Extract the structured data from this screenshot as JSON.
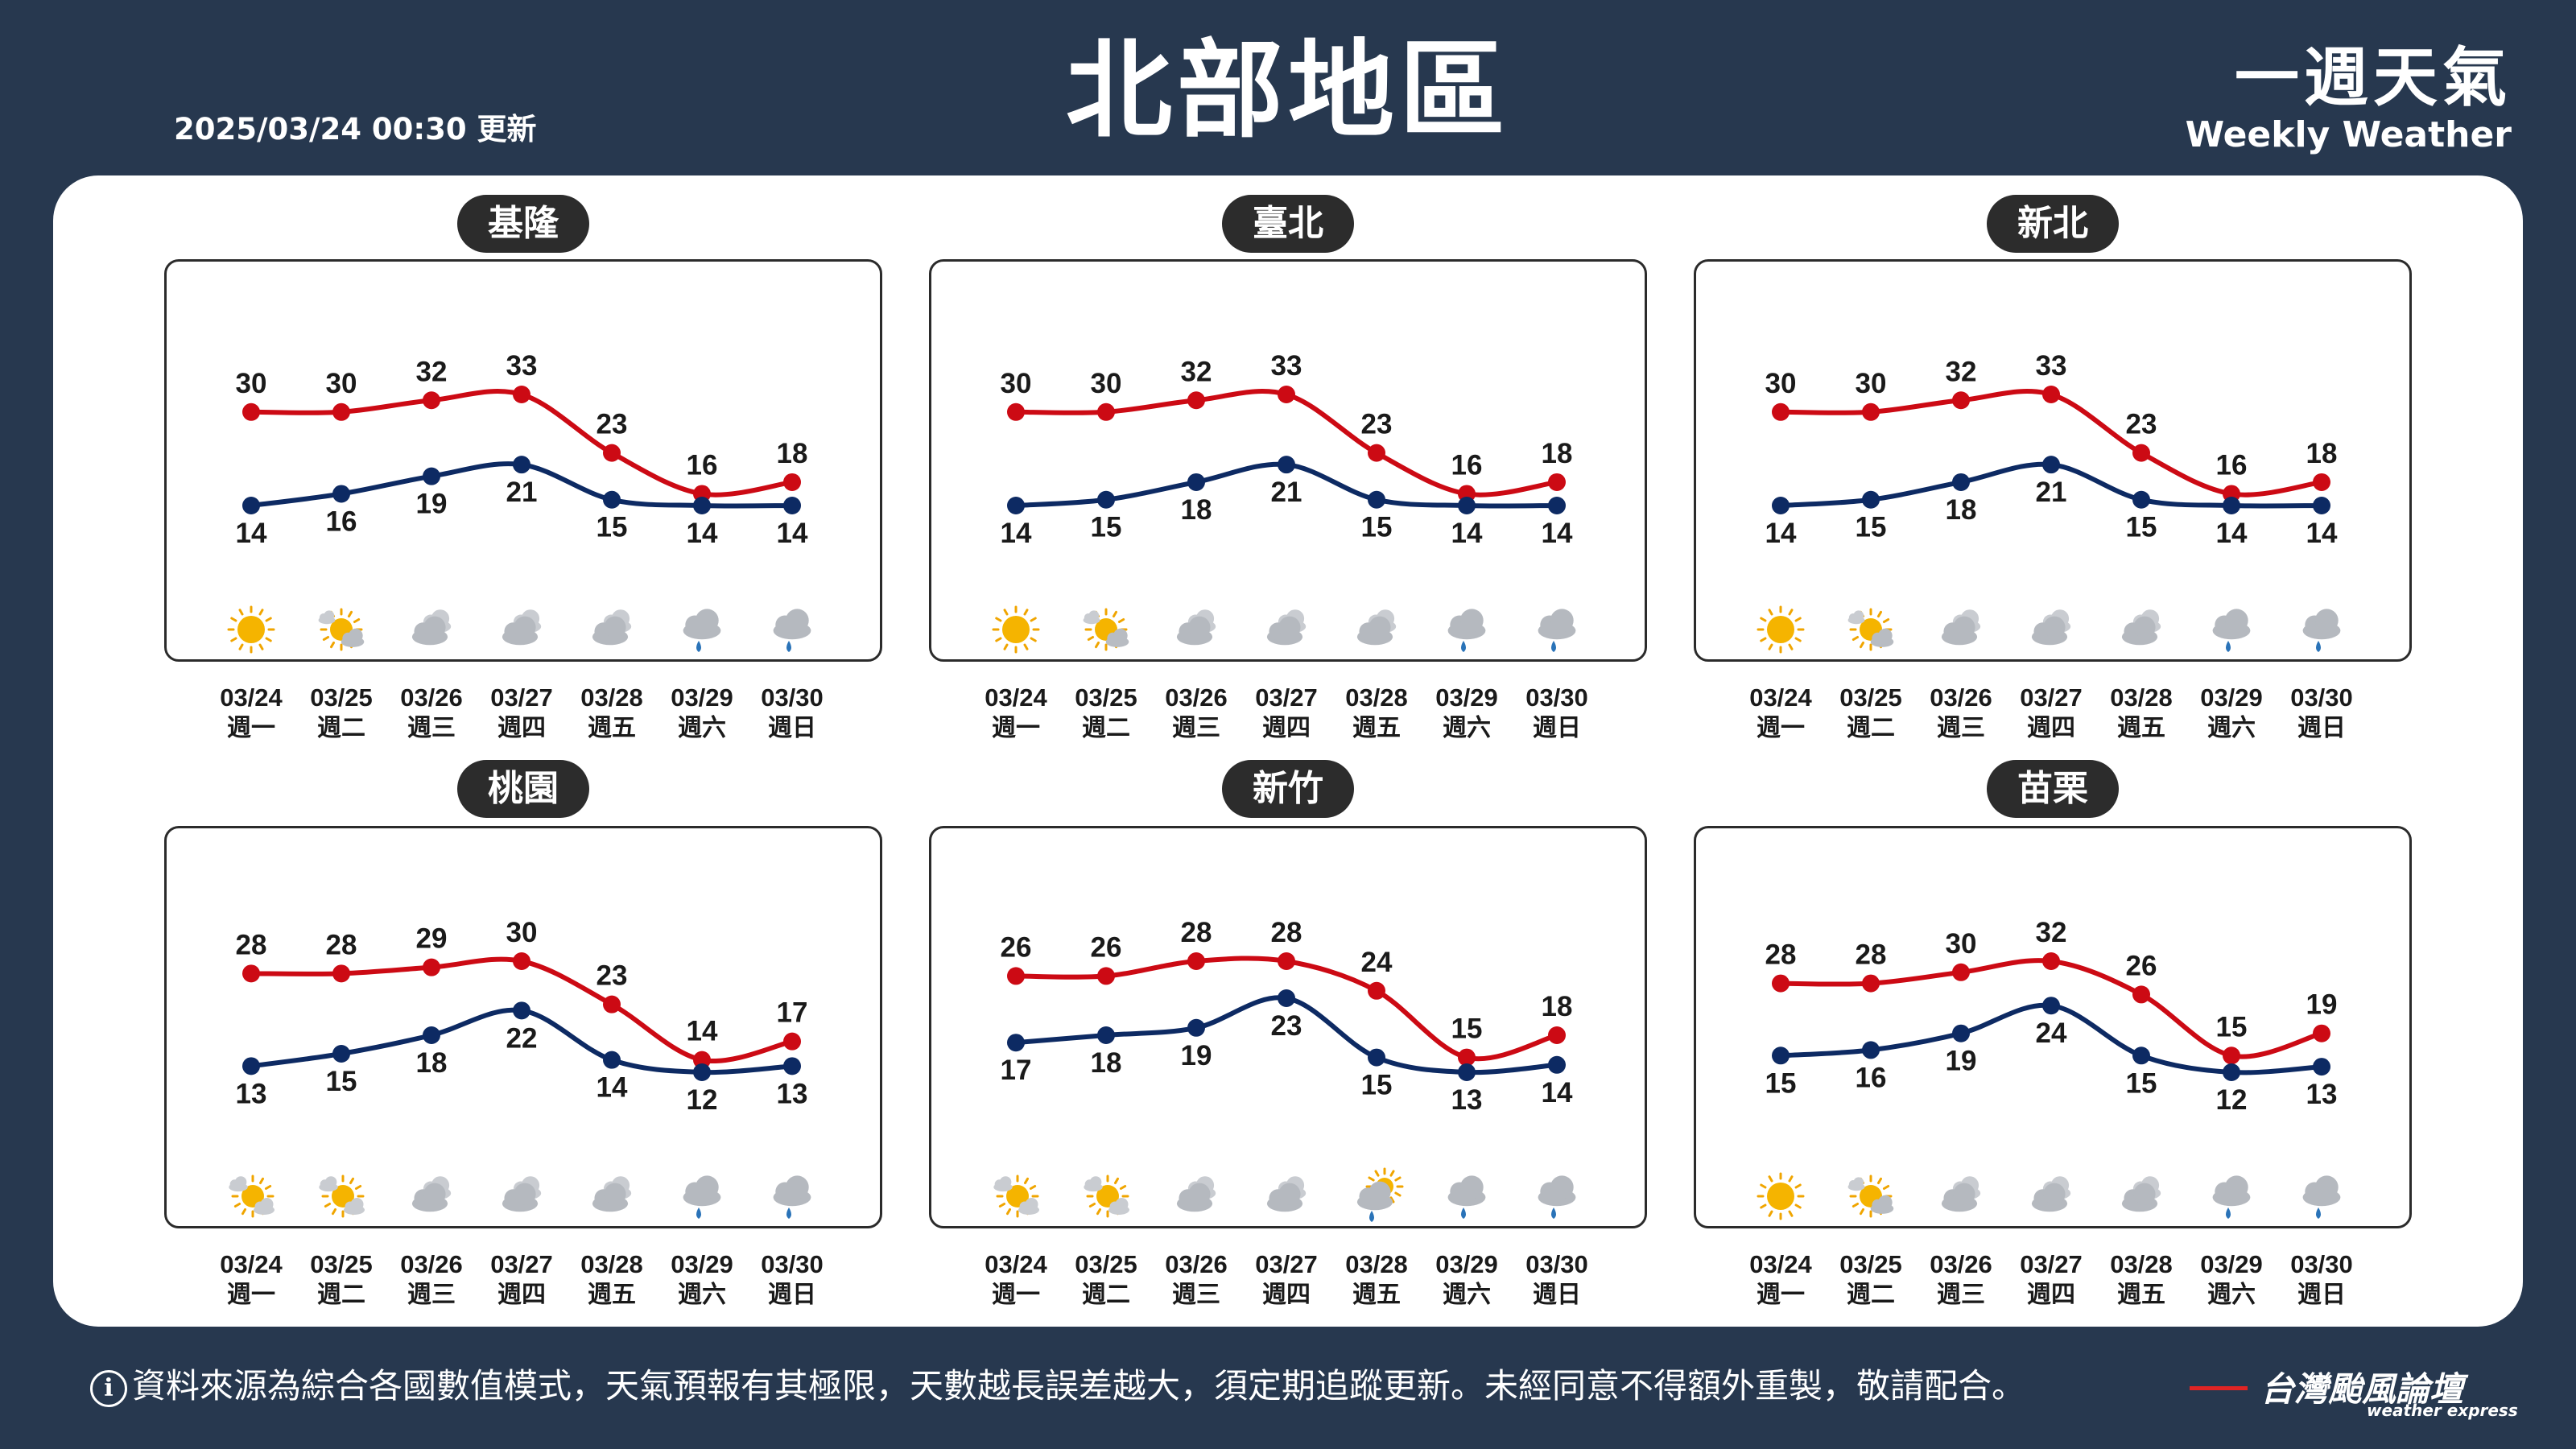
{
  "header": {
    "title": "北部地區",
    "updated": "2025/03/24 00:30 更新",
    "brand_zh": "一週天氣",
    "brand_en": "Weekly Weather"
  },
  "colors": {
    "high": "#cc0a14",
    "low": "#0d2a63"
  },
  "dates": [
    "03/24",
    "03/25",
    "03/26",
    "03/27",
    "03/28",
    "03/29",
    "03/30"
  ],
  "weekdays": [
    "週一",
    "週二",
    "週三",
    "週四",
    "週五",
    "週六",
    "週日"
  ],
  "chart_data": [
    {
      "type": "line",
      "title": "基隆",
      "categories": [
        "03/24",
        "03/25",
        "03/26",
        "03/27",
        "03/28",
        "03/29",
        "03/30"
      ],
      "series": [
        {
          "values": [
            30,
            30,
            32,
            33,
            23,
            16,
            18
          ]
        },
        {
          "values": [
            14,
            16,
            19,
            21,
            15,
            14,
            14
          ]
        }
      ],
      "icons": [
        "sunny-icon",
        "sun-cloud-icon",
        "cloudy-icon",
        "cloudy-icon",
        "cloudy-icon",
        "rain-icon",
        "rain-icon"
      ]
    },
    {
      "type": "line",
      "title": "臺北",
      "categories": [
        "03/24",
        "03/25",
        "03/26",
        "03/27",
        "03/28",
        "03/29",
        "03/30"
      ],
      "series": [
        {
          "values": [
            30,
            30,
            32,
            33,
            23,
            16,
            18
          ]
        },
        {
          "values": [
            14,
            15,
            18,
            21,
            15,
            14,
            14
          ]
        }
      ],
      "icons": [
        "sunny-icon",
        "sun-cloud-icon",
        "cloudy-icon",
        "cloudy-icon",
        "cloudy-icon",
        "rain-icon",
        "rain-icon"
      ]
    },
    {
      "type": "line",
      "title": "新北",
      "categories": [
        "03/24",
        "03/25",
        "03/26",
        "03/27",
        "03/28",
        "03/29",
        "03/30"
      ],
      "series": [
        {
          "values": [
            30,
            30,
            32,
            33,
            23,
            16,
            18
          ]
        },
        {
          "values": [
            14,
            15,
            18,
            21,
            15,
            14,
            14
          ]
        }
      ],
      "icons": [
        "sunny-icon",
        "sun-cloud-icon",
        "cloudy-icon",
        "cloudy-icon",
        "cloudy-icon",
        "rain-icon",
        "rain-icon"
      ]
    },
    {
      "type": "line",
      "title": "桃園",
      "categories": [
        "03/24",
        "03/25",
        "03/26",
        "03/27",
        "03/28",
        "03/29",
        "03/30"
      ],
      "series": [
        {
          "values": [
            28,
            28,
            29,
            30,
            23,
            14,
            17
          ]
        },
        {
          "values": [
            13,
            15,
            18,
            22,
            14,
            12,
            13
          ]
        }
      ],
      "icons": [
        "cloud-sun-icon",
        "cloud-sun-icon",
        "cloudy-icon",
        "cloudy-icon",
        "cloudy-icon",
        "rain-icon",
        "rain-icon"
      ]
    },
    {
      "type": "line",
      "title": "新竹",
      "categories": [
        "03/24",
        "03/25",
        "03/26",
        "03/27",
        "03/28",
        "03/29",
        "03/30"
      ],
      "series": [
        {
          "values": [
            26,
            26,
            28,
            28,
            24,
            15,
            18
          ]
        },
        {
          "values": [
            17,
            18,
            19,
            23,
            15,
            13,
            14
          ]
        }
      ],
      "icons": [
        "cloud-sun-icon",
        "cloud-sun-icon",
        "cloudy-icon",
        "cloudy-icon",
        "sun-rain-icon",
        "rain-icon",
        "rain-icon"
      ]
    },
    {
      "type": "line",
      "title": "苗栗",
      "categories": [
        "03/24",
        "03/25",
        "03/26",
        "03/27",
        "03/28",
        "03/29",
        "03/30"
      ],
      "series": [
        {
          "values": [
            28,
            28,
            30,
            32,
            26,
            15,
            19
          ]
        },
        {
          "values": [
            15,
            16,
            19,
            24,
            15,
            12,
            13
          ]
        }
      ],
      "icons": [
        "sunny-icon",
        "sun-cloud-icon",
        "cloudy-icon",
        "cloudy-icon",
        "cloudy-icon",
        "rain-icon",
        "rain-icon"
      ]
    }
  ],
  "footer": {
    "info_glyph": "i",
    "disclaimer": "資料來源為綜合各國數值模式，天氣預報有其極限，天數越長誤差越大，須定期追蹤更新。未經同意不得額外重製，敬請配合。",
    "logo_zh": "台灣颱風論壇",
    "logo_en": "weather express"
  }
}
